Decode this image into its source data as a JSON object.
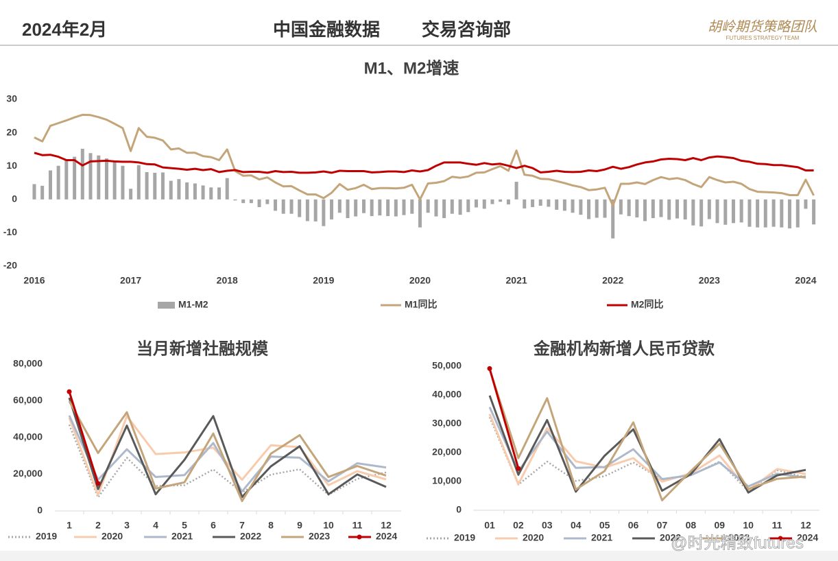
{
  "header": {
    "date": "2024年2月",
    "title": "中国金融数据",
    "department": "交易咨询部",
    "logo": "胡岭期货策略团队",
    "logo_en": "FUTURES STRATEGY TEAM"
  },
  "watermark": "@时光精致futures",
  "chart_data": [
    {
      "type": "combo",
      "title": "M1、M2增速",
      "x": [
        2016,
        2016.083,
        2016.167,
        2016.25,
        2016.333,
        2016.417,
        2016.5,
        2016.583,
        2016.667,
        2016.75,
        2016.833,
        2016.917,
        2017,
        2017.083,
        2017.167,
        2017.25,
        2017.333,
        2017.417,
        2017.5,
        2017.583,
        2017.667,
        2017.75,
        2017.833,
        2017.917,
        2018,
        2018.083,
        2018.167,
        2018.25,
        2018.333,
        2018.417,
        2018.5,
        2018.583,
        2018.667,
        2018.75,
        2018.833,
        2018.917,
        2019,
        2019.083,
        2019.167,
        2019.25,
        2019.333,
        2019.417,
        2019.5,
        2019.583,
        2019.667,
        2019.75,
        2019.833,
        2019.917,
        2020,
        2020.083,
        2020.167,
        2020.25,
        2020.333,
        2020.417,
        2020.5,
        2020.583,
        2020.667,
        2020.75,
        2020.833,
        2020.917,
        2021,
        2021.083,
        2021.167,
        2021.25,
        2021.333,
        2021.417,
        2021.5,
        2021.583,
        2021.667,
        2021.75,
        2021.833,
        2021.917,
        2022,
        2022.083,
        2022.167,
        2022.25,
        2022.333,
        2022.417,
        2022.5,
        2022.583,
        2022.667,
        2022.75,
        2022.833,
        2022.917,
        2023,
        2023.083,
        2023.167,
        2023.25,
        2023.333,
        2023.417,
        2023.5,
        2023.583,
        2023.667,
        2023.75,
        2023.833,
        2023.917,
        2024,
        2024.083
      ],
      "xlim": [
        2016,
        2024.1
      ],
      "xticks": [
        2016,
        2017,
        2018,
        2019,
        2020,
        2021,
        2022,
        2023,
        2024
      ],
      "ylim": [
        -20,
        30
      ],
      "yticks": [
        -20,
        -10,
        0,
        10,
        20,
        30
      ],
      "series": [
        {
          "name": "M1-M2",
          "type": "bar",
          "color": "#a6a6a6",
          "values": [
            4.6,
            4.1,
            8.7,
            10.1,
            11.9,
            12.8,
            15.2,
            13.9,
            13.2,
            12.3,
            11.3,
            10.1,
            3.2,
            10.3,
            8.2,
            8.0,
            8.1,
            5.6,
            6.1,
            5.1,
            4.8,
            4.2,
            3.6,
            3.6,
            6.4,
            -0.3,
            -1.1,
            -1.1,
            -2.3,
            -1.4,
            -3.4,
            -4.3,
            -4.3,
            -5.3,
            -6.5,
            -6.6,
            -8.0,
            -6.0,
            -4.0,
            -5.6,
            -5.1,
            -4.1,
            -5.0,
            -4.8,
            -5.0,
            -5.1,
            -4.7,
            -4.3,
            -8.4,
            -4.0,
            -5.1,
            -5.6,
            -4.3,
            -4.6,
            -3.8,
            -2.4,
            -2.8,
            -1.4,
            -0.7,
            -1.5,
            5.3,
            -2.7,
            -2.3,
            -1.9,
            -2.2,
            -3.1,
            -3.4,
            -4.0,
            -4.6,
            -5.9,
            -5.5,
            -5.5,
            -11.7,
            -4.5,
            -5.0,
            -5.4,
            -6.5,
            -5.6,
            -5.3,
            -6.1,
            -5.7,
            -6.0,
            -7.8,
            -8.1,
            -5.9,
            -7.1,
            -7.6,
            -7.1,
            -6.9,
            -8.2,
            -8.4,
            -8.4,
            -8.2,
            -8.4,
            -8.7,
            -8.4,
            -2.8,
            -7.5
          ]
        },
        {
          "name": "M1同比",
          "type": "line",
          "color": "#c4a57a",
          "values": [
            18.6,
            17.4,
            22.1,
            22.9,
            23.7,
            24.6,
            25.4,
            25.3,
            24.7,
            23.9,
            22.7,
            21.4,
            14.5,
            21.4,
            18.8,
            18.5,
            17.7,
            15.0,
            15.3,
            14.0,
            14.0,
            13.0,
            12.7,
            11.8,
            15.0,
            8.5,
            7.1,
            7.2,
            6.0,
            6.6,
            5.1,
            3.9,
            4.0,
            2.7,
            1.5,
            1.5,
            0.4,
            2.0,
            4.6,
            2.9,
            3.4,
            4.4,
            3.1,
            3.4,
            3.4,
            3.3,
            3.5,
            4.4,
            0.0,
            4.8,
            5.0,
            5.5,
            6.8,
            6.5,
            6.9,
            8.0,
            8.1,
            9.1,
            10.0,
            8.6,
            14.7,
            7.4,
            7.1,
            6.2,
            6.1,
            5.5,
            4.9,
            4.2,
            3.7,
            2.8,
            3.0,
            3.5,
            -1.9,
            4.7,
            4.7,
            5.1,
            4.6,
            5.8,
            6.7,
            6.1,
            6.4,
            5.8,
            4.6,
            3.7,
            6.7,
            5.8,
            5.1,
            5.3,
            4.7,
            3.1,
            2.3,
            2.2,
            2.1,
            1.9,
            1.3,
            1.3,
            5.9,
            1.2
          ]
        },
        {
          "name": "M2同比",
          "type": "line",
          "color": "#c00000",
          "values": [
            14.0,
            13.3,
            13.4,
            12.8,
            11.8,
            11.8,
            10.2,
            11.4,
            11.5,
            11.6,
            11.4,
            11.3,
            11.3,
            11.1,
            10.6,
            10.5,
            9.6,
            9.4,
            9.2,
            8.9,
            9.2,
            8.8,
            9.1,
            8.2,
            8.6,
            8.8,
            8.2,
            8.3,
            8.3,
            8.0,
            8.5,
            8.2,
            8.3,
            8.0,
            8.0,
            8.1,
            8.4,
            8.0,
            8.6,
            8.5,
            8.5,
            8.5,
            8.1,
            8.2,
            8.4,
            8.4,
            8.2,
            8.7,
            8.4,
            8.8,
            10.1,
            11.1,
            11.1,
            11.1,
            10.7,
            10.4,
            10.9,
            10.5,
            10.7,
            10.1,
            9.4,
            10.1,
            9.4,
            8.1,
            8.3,
            8.6,
            8.3,
            8.2,
            8.3,
            8.7,
            8.5,
            9.0,
            9.8,
            9.2,
            9.7,
            10.5,
            11.1,
            11.4,
            12.0,
            12.2,
            12.1,
            11.8,
            12.4,
            11.8,
            12.6,
            12.9,
            12.7,
            12.4,
            11.6,
            11.3,
            10.7,
            10.6,
            10.3,
            10.3,
            10.0,
            9.7,
            8.7,
            8.7
          ]
        }
      ]
    },
    {
      "type": "line",
      "title": "当月新增社融规模",
      "categories": [
        "1",
        "2",
        "3",
        "4",
        "5",
        "6",
        "7",
        "8",
        "9",
        "10",
        "11",
        "12"
      ],
      "ylim": [
        0,
        80000
      ],
      "yticks": [
        0,
        {
          "value": 20000,
          "label": "20,000"
        },
        {
          "value": 40000,
          "label": "40,000"
        },
        {
          "value": 60000,
          "label": "60,000"
        },
        {
          "value": 80000,
          "label": "80,000"
        }
      ],
      "series": [
        {
          "name": "2019",
          "color": "#a6a6a6",
          "dash": "dotted",
          "values": [
            47000,
            7400,
            29000,
            13600,
            14000,
            22600,
            10100,
            19800,
            22700,
            8800,
            17500,
            21000
          ]
        },
        {
          "name": "2020",
          "color": "#f8cbad",
          "values": [
            50700,
            8600,
            51700,
            31000,
            31900,
            34500,
            17000,
            35800,
            34800,
            14000,
            21700,
            17200
          ]
        },
        {
          "name": "2021",
          "color": "#adb9ca",
          "values": [
            52000,
            17000,
            33600,
            18500,
            19500,
            37000,
            10600,
            29600,
            29000,
            16100,
            26000,
            23700
          ]
        },
        {
          "name": "2022",
          "color": "#595959",
          "values": [
            61700,
            11900,
            46500,
            9100,
            27900,
            51700,
            7600,
            24300,
            35300,
            9100,
            19900,
            13100
          ]
        },
        {
          "name": "2023",
          "color": "#c4a57a",
          "values": [
            59800,
            31600,
            53800,
            12200,
            15600,
            42200,
            5400,
            31200,
            41300,
            18500,
            24500,
            19300
          ]
        },
        {
          "name": "2024",
          "color": "#c00000",
          "marker": true,
          "values": [
            65000,
            15000,
            null,
            null,
            null,
            null,
            null,
            null,
            null,
            null,
            null,
            null
          ]
        }
      ]
    },
    {
      "type": "line",
      "title": "金融机构新增人民币贷款",
      "categories": [
        "01",
        "02",
        "03",
        "04",
        "05",
        "06",
        "07",
        "08",
        "09",
        "10",
        "11",
        "12"
      ],
      "ylim": [
        0,
        50000
      ],
      "yticks": [
        0,
        {
          "value": 10000,
          "label": "10,000"
        },
        {
          "value": 20000,
          "label": "20,000"
        },
        {
          "value": 30000,
          "label": "30,000"
        },
        {
          "value": 40000,
          "label": "40,000"
        },
        {
          "value": 50000,
          "label": "50,000"
        }
      ],
      "series": [
        {
          "name": "2019",
          "color": "#a6a6a6",
          "dash": "dotted",
          "values": [
            32300,
            8900,
            16900,
            10200,
            11800,
            16600,
            10600,
            12100,
            16900,
            6613,
            13900,
            11400
          ]
        },
        {
          "name": "2020",
          "color": "#f8cbad",
          "values": [
            33400,
            9057,
            28500,
            17000,
            14800,
            18100,
            9927,
            12800,
            19000,
            6898,
            14300,
            12600
          ]
        },
        {
          "name": "2021",
          "color": "#adb9ca",
          "values": [
            35800,
            13600,
            27300,
            14700,
            15000,
            21200,
            10800,
            12200,
            16600,
            8262,
            12700,
            11300
          ]
        },
        {
          "name": "2022",
          "color": "#595959",
          "values": [
            39800,
            12300,
            31300,
            6454,
            18900,
            28100,
            6790,
            12500,
            24700,
            6152,
            12100,
            14000
          ]
        },
        {
          "name": "2023",
          "color": "#c4a57a",
          "values": [
            49000,
            18100,
            38900,
            7188,
            13600,
            30500,
            3459,
            13600,
            23100,
            7384,
            10900,
            11700
          ]
        },
        {
          "name": "2024",
          "color": "#c00000",
          "marker": true,
          "values": [
            49200,
            14500,
            null,
            null,
            null,
            null,
            null,
            null,
            null,
            null,
            null,
            null
          ]
        }
      ]
    }
  ]
}
